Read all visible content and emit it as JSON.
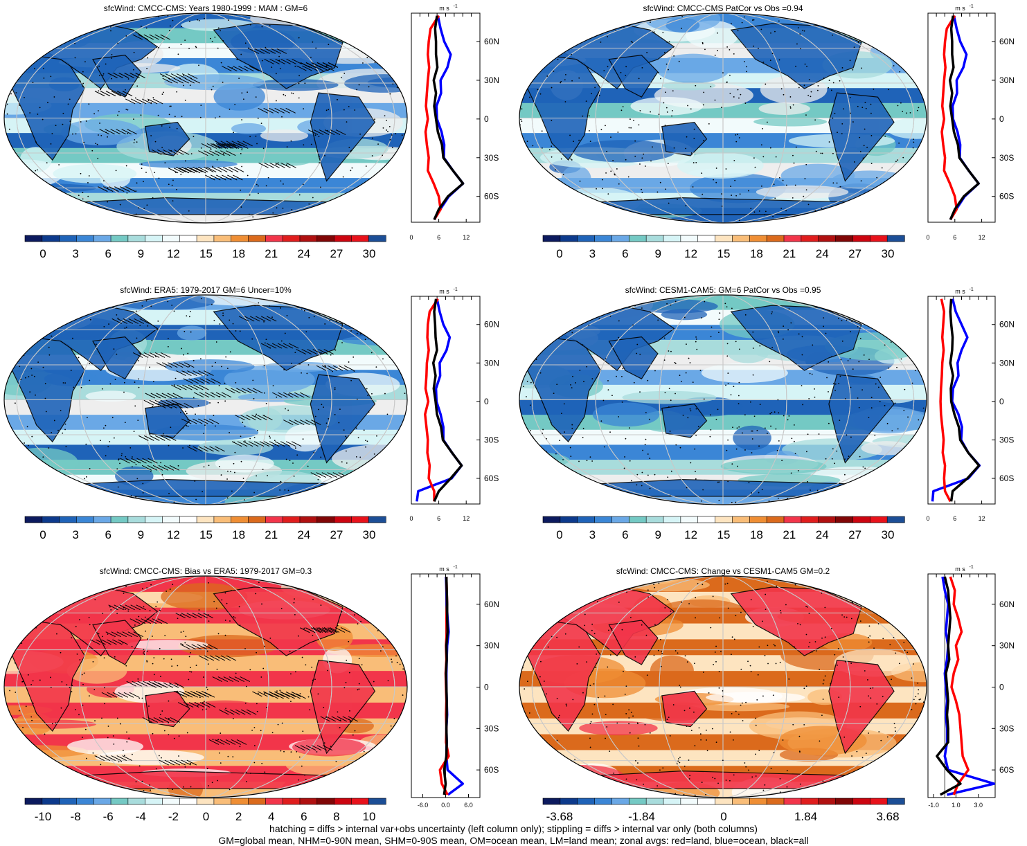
{
  "colorbar_colors": {
    "absolute": [
      "#0c1a5e",
      "#0d3a8c",
      "#1f63b8",
      "#3b86d6",
      "#6aa8e6",
      "#74c9c4",
      "#a8dcdc",
      "#d6f4f6",
      "#f2fbfc",
      "#ffffff",
      "#fde4c0",
      "#f9bd78",
      "#ef8e34",
      "#db6a1c",
      "#f2354a",
      "#e01d1d",
      "#b01010",
      "#800606",
      "#cc0510",
      "#e8121b",
      "#1c4e96"
    ],
    "diff": [
      "#0c1a5e",
      "#0d3a8c",
      "#1f63b8",
      "#3b86d6",
      "#6aa8e6",
      "#74c9c4",
      "#a8dcdc",
      "#d6f4f6",
      "#f2fbfc",
      "#ffffff",
      "#fde4c0",
      "#f9bd78",
      "#ef8e34",
      "#db6a1c",
      "#f2354a",
      "#e01d1d",
      "#b01010",
      "#800606",
      "#cc0510",
      "#e8121b",
      "#1c4e96"
    ]
  },
  "map_palettes": {
    "absolute": [
      "#1f63b8",
      "#3b86d6",
      "#6aa8e6",
      "#74c9c4",
      "#a8dcdc",
      "#d6f4f6",
      "#f2fbfc",
      "#eeeeee"
    ],
    "diff": [
      "#ef8e34",
      "#f9bd78",
      "#fde4c0",
      "#ffffff",
      "#f2354a",
      "#db6a1c"
    ]
  },
  "zonal_line_colors": {
    "land": "#ff0000",
    "ocean": "#0000ff",
    "all": "#000000"
  },
  "chart_data": [
    {
      "type": "map_with_zonal_mean",
      "title": "sfcWind: CMCC-CMS: Years 1980-1999 : MAM : GM=6",
      "colorbar_labels": [
        "0",
        "3",
        "6",
        "9",
        "12",
        "15",
        "18",
        "21",
        "24",
        "27",
        "30"
      ],
      "colorbar_palette": "absolute",
      "map_palette": "absolute",
      "hatching": true,
      "stippling": true,
      "zonal": {
        "unit": "m s",
        "unit_superscript": "-1",
        "x_ticks": [
          "0",
          "6",
          "12"
        ],
        "xlim": [
          0,
          15
        ],
        "lat_labels": [
          "60N",
          "30N",
          "0",
          "30S",
          "60S"
        ],
        "lat_values": [
          60,
          30,
          0,
          -30,
          -60
        ],
        "ylim": [
          -80,
          82
        ],
        "lat": [
          80,
          70,
          60,
          50,
          40,
          30,
          20,
          10,
          0,
          -10,
          -20,
          -30,
          -40,
          -50,
          -60,
          -70,
          -78
        ],
        "land": [
          6.0,
          4.2,
          3.8,
          3.6,
          3.9,
          3.6,
          3.4,
          3.2,
          3.6,
          3.1,
          3.4,
          3.8,
          3.6,
          4.9,
          6.0,
          6.4,
          5.0
        ],
        "ocean": [
          5.8,
          6.4,
          7.2,
          8.6,
          7.9,
          6.4,
          6.5,
          5.5,
          5.6,
          6.6,
          7.2,
          7.1,
          9.1,
          11.3,
          8.2,
          6.3,
          5.0
        ],
        "all": [
          5.6,
          5.2,
          5.4,
          5.4,
          5.7,
          4.9,
          5.4,
          5.0,
          5.4,
          5.8,
          6.7,
          7.0,
          9.1,
          11.3,
          8.0,
          6.0,
          5.0
        ]
      }
    },
    {
      "type": "map_with_zonal_mean",
      "title": "sfcWind: CMCC-CMS PatCor vs Obs =0.94",
      "colorbar_labels": [
        "0",
        "3",
        "6",
        "9",
        "12",
        "15",
        "18",
        "21",
        "24",
        "27",
        "30"
      ],
      "colorbar_palette": "absolute",
      "map_palette": "absolute",
      "hatching": false,
      "stippling": true,
      "zonal": {
        "unit": "m s",
        "unit_superscript": "-1",
        "x_ticks": [
          "0",
          "6",
          "12"
        ],
        "xlim": [
          0,
          15
        ],
        "lat_labels": [
          "60N",
          "30N",
          "0",
          "30S",
          "60S"
        ],
        "lat_values": [
          60,
          30,
          0,
          -30,
          -60
        ],
        "ylim": [
          -80,
          82
        ],
        "lat": [
          80,
          70,
          60,
          50,
          40,
          30,
          20,
          10,
          0,
          -10,
          -20,
          -30,
          -40,
          -50,
          -60,
          -70,
          -78
        ],
        "land": [
          6.0,
          4.2,
          3.8,
          3.6,
          3.9,
          3.6,
          3.4,
          3.2,
          3.6,
          3.1,
          3.4,
          3.8,
          3.6,
          4.9,
          6.0,
          6.4,
          5.0
        ],
        "ocean": [
          5.8,
          6.4,
          7.2,
          8.6,
          7.9,
          6.4,
          6.5,
          5.5,
          5.6,
          6.6,
          7.2,
          7.1,
          9.1,
          11.3,
          8.2,
          6.3,
          5.0
        ],
        "all": [
          5.6,
          5.2,
          5.4,
          5.4,
          5.7,
          4.9,
          5.4,
          5.0,
          5.4,
          5.8,
          6.7,
          7.0,
          9.1,
          11.3,
          8.0,
          6.0,
          5.0
        ]
      }
    },
    {
      "type": "map_with_zonal_mean",
      "title": "sfcWind: ERA5: 1979-2017 GM=6 Uncer=10%",
      "colorbar_labels": [
        "0",
        "3",
        "6",
        "9",
        "12",
        "15",
        "18",
        "21",
        "24",
        "27",
        "30"
      ],
      "colorbar_palette": "absolute",
      "map_palette": "absolute",
      "hatching": true,
      "stippling": true,
      "zonal": {
        "unit": "m s",
        "unit_superscript": "-1",
        "x_ticks": [
          "0",
          "6",
          "12"
        ],
        "xlim": [
          0,
          15
        ],
        "lat_labels": [
          "60N",
          "30N",
          "0",
          "30S",
          "60S"
        ],
        "lat_values": [
          60,
          30,
          0,
          -30,
          -60
        ],
        "ylim": [
          -80,
          82
        ],
        "lat": [
          80,
          70,
          60,
          50,
          40,
          30,
          20,
          10,
          0,
          -10,
          -20,
          -30,
          -40,
          -50,
          -60,
          -70,
          -78
        ],
        "land": [
          5.8,
          4.0,
          3.6,
          3.5,
          3.8,
          3.4,
          3.3,
          3.1,
          3.7,
          3.0,
          3.3,
          3.6,
          3.5,
          4.0,
          3.8,
          5.0,
          5.0
        ],
        "ocean": [
          5.6,
          6.2,
          7.0,
          8.4,
          7.7,
          6.2,
          6.3,
          5.4,
          5.5,
          6.4,
          7.0,
          7.0,
          8.9,
          11.0,
          8.8,
          1.5,
          1.2
        ],
        "all": [
          5.4,
          5.0,
          5.2,
          5.3,
          5.6,
          4.8,
          5.3,
          4.9,
          5.3,
          5.6,
          6.5,
          6.9,
          8.9,
          11.0,
          8.6,
          6.0,
          5.0
        ]
      }
    },
    {
      "type": "map_with_zonal_mean",
      "title": "sfcWind: CESM1-CAM5: GM=6 PatCor vs Obs =0.95",
      "colorbar_labels": [
        "0",
        "3",
        "6",
        "9",
        "12",
        "15",
        "18",
        "21",
        "24",
        "27",
        "30"
      ],
      "colorbar_palette": "absolute",
      "map_palette": "absolute",
      "hatching": false,
      "stippling": true,
      "zonal": {
        "unit": "m s",
        "unit_superscript": "-1",
        "x_ticks": [
          "0",
          "6",
          "12"
        ],
        "xlim": [
          0,
          15
        ],
        "lat_labels": [
          "60N",
          "30N",
          "0",
          "30S",
          "60S"
        ],
        "lat_values": [
          60,
          30,
          0,
          -30,
          -60
        ],
        "ylim": [
          -80,
          82
        ],
        "lat": [
          80,
          70,
          60,
          50,
          40,
          30,
          20,
          10,
          0,
          -10,
          -20,
          -30,
          -40,
          -50,
          -60,
          -70,
          -78
        ],
        "land": [
          3.0,
          3.6,
          3.4,
          3.2,
          3.5,
          3.2,
          3.1,
          2.9,
          2.8,
          2.9,
          3.2,
          3.5,
          3.3,
          3.8,
          3.6,
          3.8,
          5.0
        ],
        "ocean": [
          5.5,
          6.2,
          7.5,
          8.8,
          7.5,
          6.6,
          6.8,
          5.6,
          5.4,
          6.8,
          7.6,
          7.4,
          9.0,
          11.5,
          9.0,
          1.2,
          1.0
        ],
        "all": [
          5.2,
          5.0,
          5.2,
          5.5,
          5.4,
          5.0,
          5.6,
          5.1,
          5.2,
          5.9,
          6.9,
          7.2,
          9.0,
          11.4,
          8.8,
          5.5,
          5.2
        ]
      }
    },
    {
      "type": "map_with_zonal_mean",
      "title": "sfcWind: CMCC-CMS: Bias vs ERA5: 1979-2017 GM=0.3",
      "colorbar_labels": [
        "-10",
        "-8",
        "-6",
        "-4",
        "-2",
        "0",
        "2",
        "4",
        "6",
        "8",
        "10"
      ],
      "colorbar_palette": "diff",
      "map_palette": "diff",
      "hatching": true,
      "stippling": true,
      "zonal": {
        "unit": "m s",
        "unit_superscript": "-1",
        "x_ticks": [
          "-6.0",
          "0.0",
          "6.0"
        ],
        "xlim": [
          -9,
          9
        ],
        "lat_labels": [
          "60N",
          "30N",
          "0",
          "30S",
          "60S"
        ],
        "lat_values": [
          60,
          30,
          0,
          -30,
          -60
        ],
        "ylim": [
          -80,
          82
        ],
        "lat": [
          80,
          70,
          60,
          50,
          40,
          30,
          20,
          10,
          0,
          -10,
          -20,
          -30,
          -40,
          -50,
          -60,
          -70,
          -78
        ],
        "land": [
          0.2,
          0.3,
          0.4,
          0.2,
          0.3,
          0.1,
          0.2,
          0.0,
          0.1,
          0.2,
          0.1,
          0.2,
          0.1,
          0.8,
          -1.5,
          -1.0,
          0.5
        ],
        "ocean": [
          0.1,
          0.2,
          0.3,
          0.5,
          0.8,
          0.4,
          0.3,
          0.2,
          0.2,
          0.3,
          0.4,
          0.2,
          0.3,
          0.2,
          0.5,
          4.5,
          0.6
        ],
        "all": [
          0.2,
          0.3,
          0.4,
          0.4,
          0.5,
          0.2,
          0.3,
          0.1,
          0.2,
          0.3,
          0.3,
          0.2,
          0.3,
          0.2,
          -0.4,
          0.0,
          -0.4
        ]
      }
    },
    {
      "type": "map_with_zonal_mean",
      "title": "sfcWind: CMCC-CMS: Change vs CESM1-CAM5 GM=0.2",
      "colorbar_labels": [
        "-3.68",
        "-1.84",
        "0",
        "1.84",
        "3.68"
      ],
      "colorbar_palette": "diff",
      "map_palette": "diff",
      "hatching": false,
      "stippling": true,
      "zonal": {
        "unit": "m s",
        "unit_superscript": "-1",
        "x_ticks": [
          "-1.0",
          "1.0",
          "3.0"
        ],
        "xlim": [
          -1.5,
          4.5
        ],
        "lat_labels": [
          "60N",
          "30N",
          "0",
          "30S",
          "60S"
        ],
        "lat_values": [
          60,
          30,
          0,
          -30,
          -60
        ],
        "ylim": [
          -80,
          82
        ],
        "lat": [
          80,
          70,
          60,
          50,
          40,
          30,
          20,
          10,
          0,
          -10,
          -20,
          -30,
          -40,
          -50,
          -60,
          -70,
          -78
        ],
        "land": [
          0.5,
          0.9,
          0.8,
          1.2,
          1.5,
          1.0,
          1.2,
          0.8,
          0.6,
          1.0,
          1.3,
          1.4,
          1.5,
          1.6,
          2.1,
          1.2,
          0.8
        ],
        "ocean": [
          -0.2,
          0.0,
          0.3,
          0.2,
          0.1,
          0.3,
          0.2,
          0.0,
          0.1,
          0.2,
          0.1,
          0.2,
          0.2,
          0.0,
          0.3,
          4.4,
          0.2
        ],
        "all": [
          0.0,
          0.3,
          0.4,
          0.5,
          0.4,
          0.3,
          0.4,
          0.1,
          0.2,
          0.3,
          0.2,
          0.3,
          0.3,
          -0.7,
          0.2,
          1.4,
          -0.4
        ]
      }
    }
  ],
  "footer": {
    "line1": "hatching = diffs > internal var+obs uncertainty (left column only); stippling = diffs > internal var only (both columns)",
    "line2": "GM=global mean, NHM=0-90N mean, SHM=0-90S mean, OM=ocean mean, LM=land mean; zonal avgs: red=land, blue=ocean, black=all"
  }
}
